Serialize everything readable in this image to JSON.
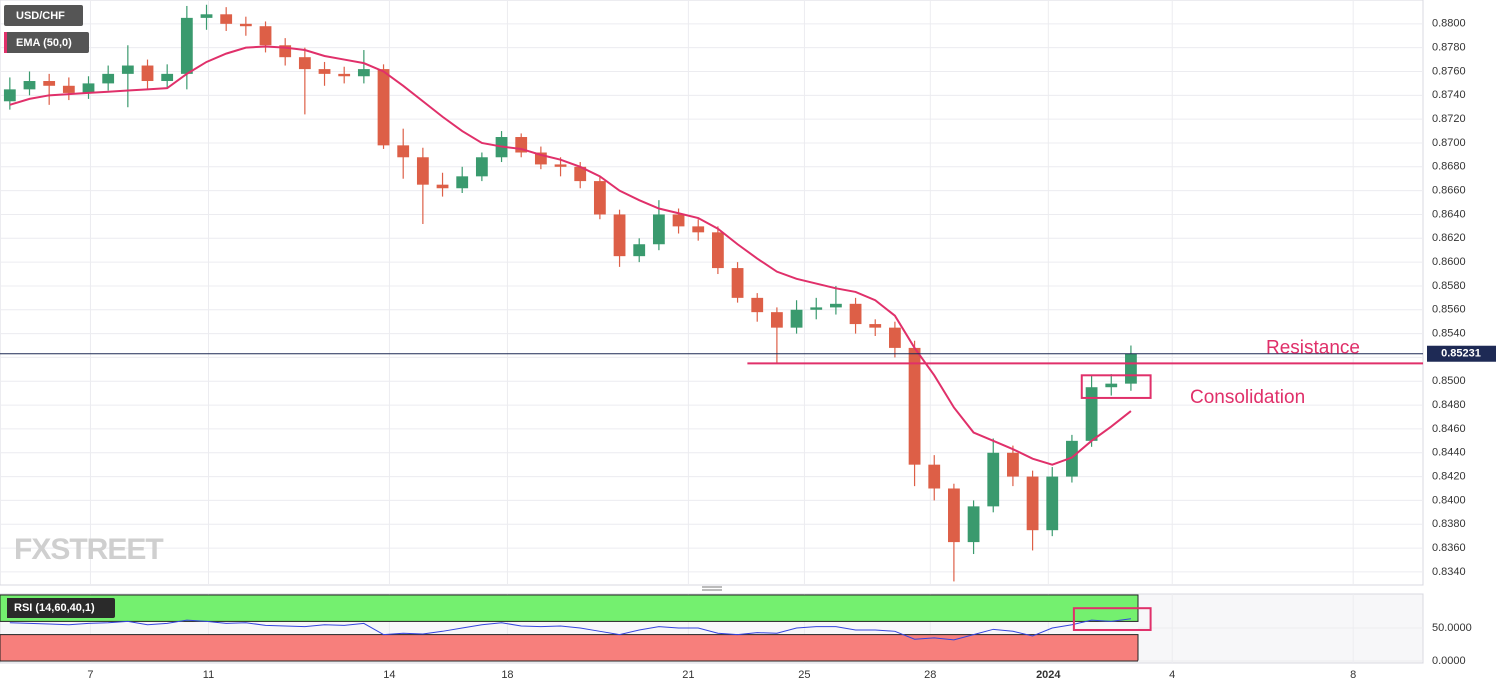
{
  "chart_data": [
    {
      "type": "candlestick",
      "title": "USD/CHF",
      "watermark": "FXSTREET",
      "up_color": "#3a9a6e",
      "down_color": "#dd5f47",
      "open": [
        0.8735,
        0.8745,
        0.8752,
        0.8748,
        0.8742,
        0.875,
        0.8758,
        0.8765,
        0.8752,
        0.8758,
        0.8805,
        0.8808,
        0.88,
        0.8798,
        0.8782,
        0.8772,
        0.8762,
        0.8758,
        0.8756,
        0.8762,
        0.8698,
        0.8688,
        0.8665,
        0.8662,
        0.8672,
        0.8688,
        0.8705,
        0.8692,
        0.8682,
        0.868,
        0.8668,
        0.864,
        0.8605,
        0.8615,
        0.864,
        0.863,
        0.8625,
        0.8595,
        0.857,
        0.8558,
        0.8545,
        0.856,
        0.8562,
        0.8565,
        0.8548,
        0.8545,
        0.8528,
        0.843,
        0.841,
        0.8365,
        0.8395,
        0.844,
        0.842,
        0.8375,
        0.842,
        0.845,
        0.8495,
        0.8498
      ],
      "high": [
        0.8755,
        0.876,
        0.8758,
        0.8755,
        0.8756,
        0.8765,
        0.8782,
        0.877,
        0.8766,
        0.8815,
        0.8816,
        0.8814,
        0.8806,
        0.8802,
        0.8788,
        0.878,
        0.8768,
        0.8764,
        0.8778,
        0.8766,
        0.8712,
        0.8696,
        0.8675,
        0.868,
        0.8692,
        0.871,
        0.8708,
        0.8697,
        0.8688,
        0.8684,
        0.8672,
        0.8644,
        0.862,
        0.8652,
        0.8645,
        0.8636,
        0.863,
        0.86,
        0.8574,
        0.8562,
        0.8568,
        0.857,
        0.858,
        0.857,
        0.8552,
        0.855,
        0.8534,
        0.8438,
        0.8414,
        0.84,
        0.8452,
        0.8446,
        0.8425,
        0.8428,
        0.8455,
        0.8505,
        0.8506,
        0.853
      ],
      "low": [
        0.8728,
        0.874,
        0.8732,
        0.8736,
        0.8737,
        0.8744,
        0.873,
        0.8745,
        0.8746,
        0.8745,
        0.8795,
        0.8794,
        0.879,
        0.8776,
        0.8765,
        0.8724,
        0.8748,
        0.875,
        0.875,
        0.8695,
        0.867,
        0.8632,
        0.8655,
        0.8658,
        0.8668,
        0.8684,
        0.8688,
        0.8678,
        0.8672,
        0.8662,
        0.8636,
        0.8596,
        0.86,
        0.861,
        0.8624,
        0.8618,
        0.859,
        0.8566,
        0.855,
        0.8515,
        0.854,
        0.8552,
        0.8556,
        0.854,
        0.8538,
        0.852,
        0.8412,
        0.84,
        0.8332,
        0.8355,
        0.839,
        0.8412,
        0.8358,
        0.837,
        0.8415,
        0.8445,
        0.8488,
        0.8492
      ],
      "close": [
        0.8745,
        0.8752,
        0.8748,
        0.8742,
        0.875,
        0.8758,
        0.8765,
        0.8752,
        0.8758,
        0.8805,
        0.8808,
        0.88,
        0.8798,
        0.8782,
        0.8772,
        0.8762,
        0.8758,
        0.8756,
        0.8762,
        0.8698,
        0.8688,
        0.8665,
        0.8662,
        0.8672,
        0.8688,
        0.8705,
        0.8692,
        0.8682,
        0.868,
        0.8668,
        0.864,
        0.8605,
        0.8615,
        0.864,
        0.863,
        0.8625,
        0.8595,
        0.857,
        0.8558,
        0.8545,
        0.856,
        0.8562,
        0.8565,
        0.8548,
        0.8545,
        0.8528,
        0.843,
        0.841,
        0.8365,
        0.8395,
        0.844,
        0.842,
        0.8375,
        0.842,
        0.845,
        0.8495,
        0.8498,
        0.8523
      ],
      "ema": {
        "name": "EMA (50,0)",
        "color": "#e0306a",
        "values": [
          0.8732,
          0.8737,
          0.874,
          0.8741,
          0.8742,
          0.8743,
          0.8744,
          0.8745,
          0.8746,
          0.8758,
          0.8768,
          0.8775,
          0.878,
          0.8781,
          0.878,
          0.8778,
          0.8773,
          0.877,
          0.8767,
          0.876,
          0.8748,
          0.8735,
          0.8722,
          0.871,
          0.87,
          0.8697,
          0.8695,
          0.869,
          0.8686,
          0.868,
          0.8672,
          0.866,
          0.8652,
          0.8645,
          0.8641,
          0.8637,
          0.8628,
          0.8615,
          0.8603,
          0.8592,
          0.8586,
          0.8582,
          0.8578,
          0.8575,
          0.8568,
          0.8555,
          0.8528,
          0.8505,
          0.8478,
          0.8457,
          0.845,
          0.8443,
          0.8435,
          0.843,
          0.8436,
          0.845,
          0.8462,
          0.8475
        ]
      },
      "last_price": 0.85231,
      "ylim": [
        0.8329,
        0.882
      ],
      "yticks": [
        {
          "value": 0.834,
          "label": "0.8340"
        },
        {
          "value": 0.836,
          "label": "0.8360"
        },
        {
          "value": 0.838,
          "label": "0.8380"
        },
        {
          "value": 0.84,
          "label": "0.8400"
        },
        {
          "value": 0.842,
          "label": "0.8420"
        },
        {
          "value": 0.844,
          "label": "0.8440"
        },
        {
          "value": 0.846,
          "label": "0.8460"
        },
        {
          "value": 0.848,
          "label": "0.8480"
        },
        {
          "value": 0.85,
          "label": "0.8500"
        },
        {
          "value": 0.852,
          "label": "0.8520"
        },
        {
          "value": 0.854,
          "label": "0.8540"
        },
        {
          "value": 0.856,
          "label": "0.8560"
        },
        {
          "value": 0.858,
          "label": "0.8580"
        },
        {
          "value": 0.86,
          "label": "0.8600"
        },
        {
          "value": 0.862,
          "label": "0.8620"
        },
        {
          "value": 0.864,
          "label": "0.8640"
        },
        {
          "value": 0.866,
          "label": "0.8660"
        },
        {
          "value": 0.868,
          "label": "0.8680"
        },
        {
          "value": 0.87,
          "label": "0.8700"
        },
        {
          "value": 0.872,
          "label": "0.8720"
        },
        {
          "value": 0.874,
          "label": "0.8740"
        },
        {
          "value": 0.876,
          "label": "0.8760"
        },
        {
          "value": 0.878,
          "label": "0.8780"
        },
        {
          "value": 0.88,
          "label": "0.8800"
        }
      ],
      "xlim": [
        0,
        72.35
      ],
      "xticks": [
        {
          "value": 4.6,
          "label": "7"
        },
        {
          "value": 10.6,
          "label": "11"
        },
        {
          "value": 19.8,
          "label": "14"
        },
        {
          "value": 25.8,
          "label": "18"
        },
        {
          "value": 35.0,
          "label": "21"
        },
        {
          "value": 40.9,
          "label": "25"
        },
        {
          "value": 47.3,
          "label": "28"
        },
        {
          "value": 53.3,
          "label": "2024"
        },
        {
          "value": 59.6,
          "label": "4"
        },
        {
          "value": 68.8,
          "label": "8"
        }
      ],
      "annotations": [
        {
          "text": "Resistance",
          "value": 0.8515,
          "x_start": 38.0,
          "color": "#e0306a"
        },
        {
          "text": "Consolidation",
          "low": 0.8486,
          "high": 0.8505,
          "x_range": [
            55.0,
            58.5
          ],
          "color": "#e0306a"
        }
      ]
    },
    {
      "type": "line",
      "series": [
        {
          "name": "RSI (14,60,40,1)",
          "color": "#3344dd",
          "values": [
            58,
            57,
            56,
            55,
            57,
            58,
            60,
            55,
            57,
            62,
            60,
            57,
            58,
            54,
            53,
            52,
            55,
            54,
            57,
            40,
            42,
            41,
            45,
            50,
            55,
            58,
            53,
            52,
            53,
            50,
            45,
            40,
            47,
            52,
            50,
            50,
            42,
            40,
            43,
            42,
            50,
            52,
            52,
            47,
            47,
            45,
            33,
            35,
            32,
            40,
            48,
            45,
            38,
            50,
            55,
            62,
            60,
            64
          ]
        }
      ],
      "upper_band": 60,
      "lower_band": 40,
      "band_top": 100,
      "band_bottom": 0,
      "ylim": [
        -3,
        101.5
      ],
      "yticks": [
        {
          "value": 50,
          "label": "50.0000"
        },
        {
          "value": 0,
          "label": "0.0000"
        }
      ],
      "box": {
        "low": 47,
        "high": 80,
        "x_range": [
          54.6,
          58.5
        ],
        "color": "#e0306a"
      }
    }
  ]
}
